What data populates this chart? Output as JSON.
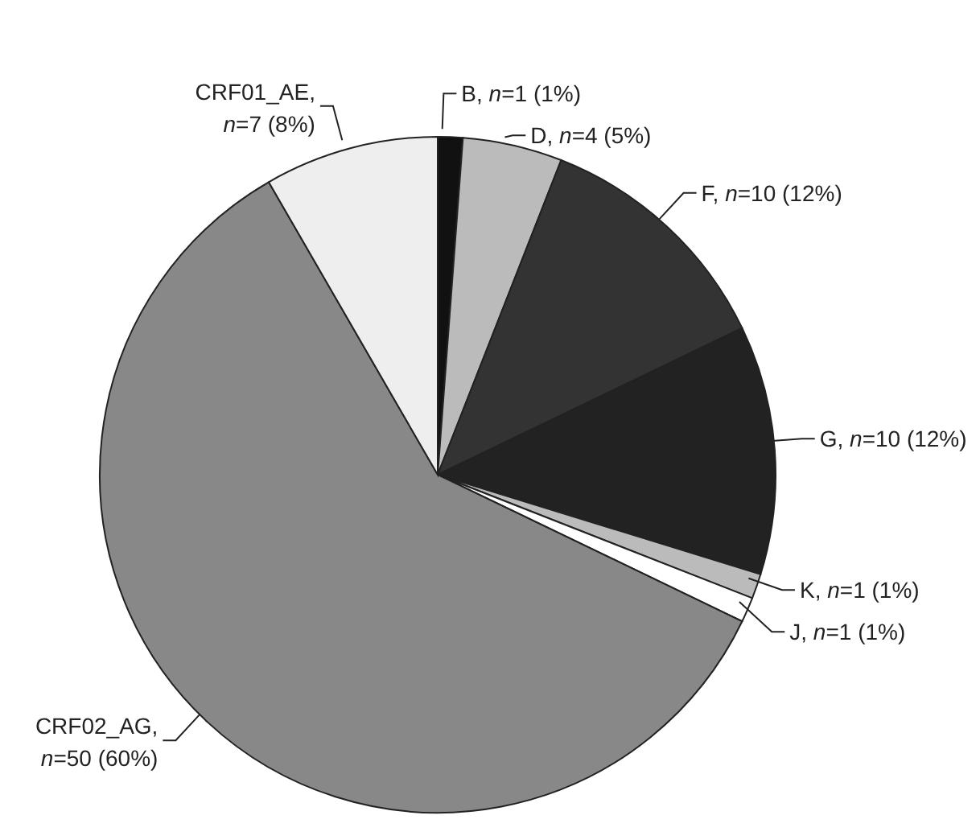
{
  "chart_data": {
    "type": "pie",
    "categories": [
      "B",
      "D",
      "F",
      "G",
      "K",
      "J",
      "CRF02_AG",
      "CRF01_AE"
    ],
    "values": [
      1,
      4,
      10,
      10,
      1,
      1,
      50,
      7
    ],
    "value_labels": [
      ", n=1 (1%)",
      ", n=4 (5%)",
      ", n=10 (12%)",
      ", n=10 (12%)",
      ", n=1 (1%)",
      ", n=1 (1%)",
      ", n=50 (60%)",
      ", n=7 (8%)"
    ],
    "colors": [
      "#111111",
      "#bbbbbb",
      "#333333",
      "#222222",
      "#bbbbbb",
      "#ffffff",
      "#888888",
      "#eeeeee"
    ],
    "legend": false
  }
}
